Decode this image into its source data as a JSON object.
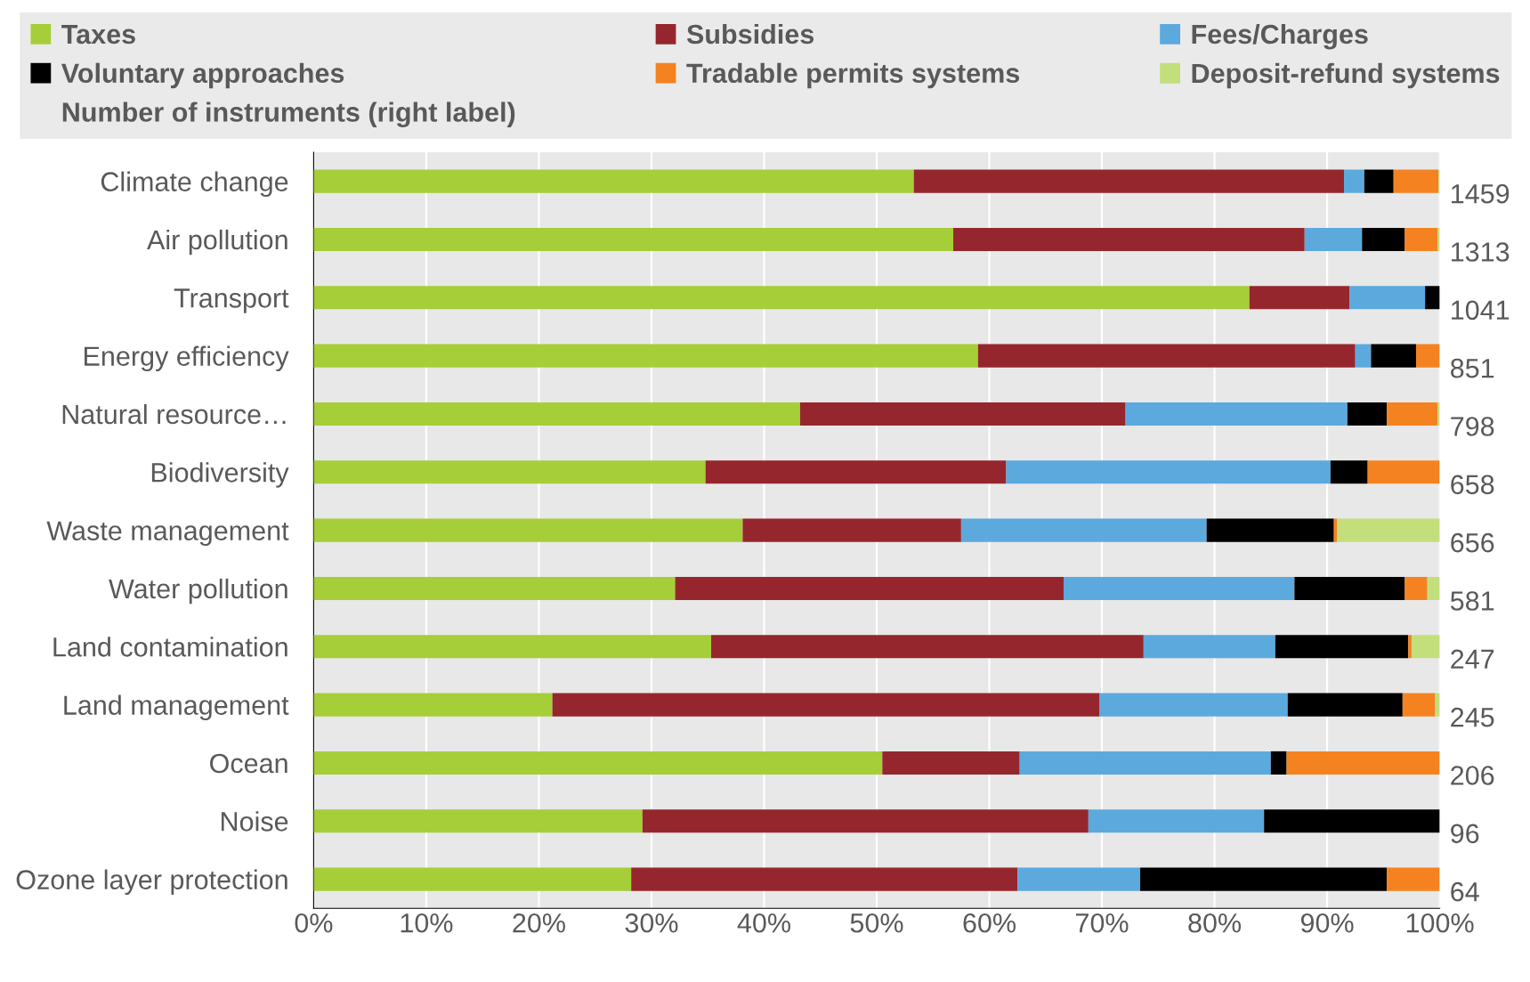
{
  "chart_data": {
    "type": "bar",
    "orientation": "horizontal",
    "stacked": true,
    "categories": [
      "Climate change",
      "Air pollution",
      "Transport",
      "Energy efficiency",
      "Natural resource…",
      "Biodiversity",
      "Waste management",
      "Water pollution",
      "Land contamination",
      "Land management",
      "Ocean",
      "Noise",
      "Ozone layer protection"
    ],
    "series": [
      {
        "name": "Taxes",
        "color": "#a6ce39",
        "values": [
          53.3,
          56.8,
          83.1,
          59.0,
          43.2,
          34.8,
          38.1,
          32.1,
          35.3,
          21.2,
          50.5,
          29.2,
          28.2
        ]
      },
      {
        "name": "Subsidies",
        "color": "#96262d",
        "values": [
          38.2,
          31.2,
          8.9,
          33.5,
          28.9,
          26.7,
          19.4,
          34.5,
          38.4,
          48.6,
          12.2,
          39.6,
          34.3
        ]
      },
      {
        "name": "Fees/Charges",
        "color": "#5ca9de",
        "values": [
          1.8,
          5.1,
          6.7,
          1.4,
          19.7,
          28.8,
          21.8,
          20.5,
          11.7,
          16.7,
          22.3,
          15.6,
          10.9
        ]
      },
      {
        "name": "Voluntary approaches",
        "color": "#000000",
        "values": [
          2.6,
          3.8,
          1.3,
          4.0,
          3.5,
          3.3,
          11.3,
          9.8,
          11.8,
          10.2,
          1.4,
          15.6,
          21.9
        ]
      },
      {
        "name": "Tradable permits systems",
        "color": "#f58220",
        "values": [
          4.0,
          2.9,
          0,
          2.1,
          4.5,
          6.4,
          0.3,
          2.0,
          0.3,
          2.9,
          13.6,
          0,
          4.7
        ]
      },
      {
        "name": "Deposit-refund systems",
        "color": "#c3df7c",
        "values": [
          0.1,
          0.2,
          0,
          0,
          0.2,
          0,
          9.1,
          1.1,
          2.5,
          0.4,
          0,
          0,
          0
        ]
      }
    ],
    "xlim": [
      0,
      100
    ],
    "xticks": [
      {
        "value": 0,
        "label": "0%"
      },
      {
        "value": 10,
        "label": "10%"
      },
      {
        "value": 20,
        "label": "20%"
      },
      {
        "value": 30,
        "label": "30%"
      },
      {
        "value": 40,
        "label": "40%"
      },
      {
        "value": 50,
        "label": "50%"
      },
      {
        "value": 60,
        "label": "60%"
      },
      {
        "value": 70,
        "label": "70%"
      },
      {
        "value": 80,
        "label": "80%"
      },
      {
        "value": 90,
        "label": "90%"
      },
      {
        "value": 100,
        "label": "100%"
      }
    ],
    "grid": "x",
    "legend": "top",
    "annotations": [
      "Number of instruments (right label)",
      "1459",
      "1313",
      "1041",
      "851",
      "798",
      "658",
      "656",
      "581",
      "247",
      "245",
      "206",
      "96",
      "64"
    ]
  }
}
